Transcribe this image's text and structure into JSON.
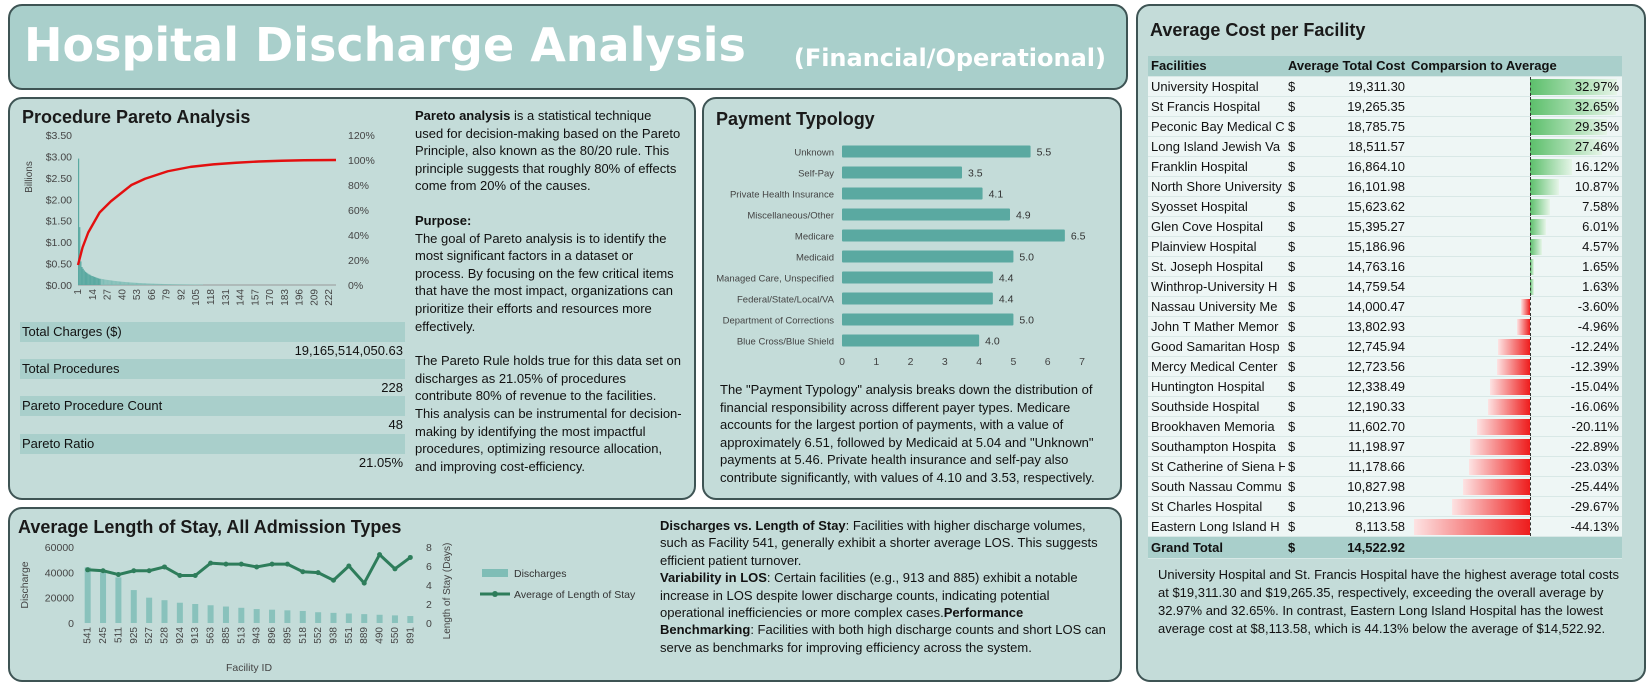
{
  "header": {
    "title": "Hospital Discharge Analysis",
    "subtitle": "(Financial/Operational)"
  },
  "pareto": {
    "title": "Procedure Pareto Analysis",
    "y_axis_unit": "Billions",
    "y_ticks": [
      "$0.00",
      "$0.50",
      "$1.00",
      "$1.50",
      "$2.00",
      "$2.50",
      "$3.00",
      "$3.50"
    ],
    "y2_ticks": [
      "0%",
      "20%",
      "40%",
      "60%",
      "80%",
      "100%",
      "120%"
    ],
    "x_ticks": [
      "1",
      "14",
      "27",
      "40",
      "53",
      "66",
      "79",
      "92",
      "105",
      "118",
      "131",
      "144",
      "157",
      "170",
      "183",
      "196",
      "209",
      "222"
    ],
    "kpis": [
      {
        "label": "Total Charges ($)",
        "value": "19,165,514,050.63"
      },
      {
        "label": "Total Procedures",
        "value": "228"
      },
      {
        "label": "Pareto Procedure Count",
        "value": "48"
      },
      {
        "label": "Pareto Ratio",
        "value": "21.05%"
      }
    ],
    "text": {
      "p1_bold": "Pareto analysis",
      "p1_rest": " is a statistical technique used for decision-making based on the Pareto Principle, also known as the 80/20 rule. This principle suggests that roughly 80% of effects come from 20% of the causes.",
      "p2_heading": "Purpose:",
      "p2": "The goal of Pareto analysis is to identify the most significant factors in a dataset or process. By focusing on the few critical items that have the most impact, organizations can prioritize their efforts and resources more effectively.",
      "p3": "The Pareto Rule holds true for this data set on discharges as 21.05% of procedures contribute 80% of revenue to the facilities. This analysis can be instrumental for decision-making by identifying the most impactful procedures, optimizing resource allocation, and improving cost-efficiency."
    }
  },
  "payment": {
    "title": "Payment Typology",
    "x_ticks": [
      "0",
      "1",
      "2",
      "3",
      "4",
      "5",
      "6",
      "7"
    ],
    "description": "The \"Payment Typology\" analysis breaks down the distribution of financial responsibility across different payer types. Medicare accounts for the largest portion of payments, with a value of approximately 6.51, followed by Medicaid at 5.04 and \"Unknown\" payments at 5.46. Private health insurance and self-pay also contribute significantly, with values of 4.10 and 3.53, respectively."
  },
  "los": {
    "title": "Average Length of Stay, All Admission Types",
    "y_ticks": [
      "0",
      "20000",
      "40000",
      "60000"
    ],
    "y2_ticks": [
      "0",
      "2",
      "4",
      "6",
      "8"
    ],
    "ylabel": "Discharge",
    "y2label": "Length of Stay (Days)",
    "xlabel": "Facility ID",
    "legend_bar": "Discharges",
    "legend_line": "Average of Length of Stay",
    "text": {
      "b1": "Discharges vs. Length of Stay",
      "t1": ": Facilities with higher discharge volumes, such as Facility 541, generally exhibit a shorter average LOS. This suggests efficient patient turnover.",
      "b2": "Variability in LOS",
      "t2": ": Certain facilities (e.g., 913 and 885) exhibit a notable increase in LOS despite lower discharge counts, indicating potential operational inefficiencies or more complex cases.",
      "b3": "Performance Benchmarking",
      "t3": ": Facilities with both high discharge counts and short LOS can serve as benchmarks for improving efficiency across the system."
    }
  },
  "cost": {
    "title": "Average Cost per Facility",
    "headers": [
      "Facilities",
      "Average Total Cost",
      "Comparsion to Average"
    ],
    "grand_total_label": "Grand Total",
    "grand_total_dollar": "$",
    "grand_total_value": "14,522.92",
    "dollar": "$",
    "description": "University Hospital and St. Francis Hospital have the highest average total costs at $19,311.30 and $19,265.35, respectively, exceeding the overall average by 32.97% and 32.65%. In contrast, Eastern Long Island Hospital has the lowest average cost at $8,113.58, which is 44.13% below the average of $14,522.92.",
    "positive_color": "#5cbf6b",
    "negative_color": "#ee1c1c"
  },
  "chart_data": [
    {
      "type": "bar",
      "title": "Procedure Pareto Analysis",
      "ylabel": "Billions",
      "ylim": [
        0,
        3.5
      ],
      "y2lim": [
        0,
        1.2
      ],
      "x_range": [
        1,
        228
      ],
      "series": [
        {
          "type": "bar",
          "values": [
            2.95,
            1.35,
            0.55,
            0.42,
            0.38,
            0.34,
            0.31,
            0.29,
            0.27,
            0.25,
            0.24,
            0.22,
            0.21,
            0.2,
            0.19,
            0.18,
            0.17,
            0.16,
            0.15,
            0.145
          ]
        },
        {
          "type": "line",
          "x": [
            1,
            5,
            10,
            20,
            30,
            48,
            60,
            80,
            100,
            120,
            140,
            160,
            180,
            200,
            228
          ],
          "values": [
            0.16,
            0.3,
            0.42,
            0.58,
            0.67,
            0.8,
            0.85,
            0.91,
            0.945,
            0.965,
            0.978,
            0.988,
            0.994,
            0.998,
            1.0
          ]
        }
      ]
    },
    {
      "type": "bar",
      "title": "Payment Typology",
      "categories": [
        "Unknown",
        "Self-Pay",
        "Private Health Insurance",
        "Miscellaneous/Other",
        "Medicare",
        "Medicaid",
        "Managed Care, Unspecified",
        "Federal/State/Local/VA",
        "Department of Corrections",
        "Blue Cross/Blue Shield"
      ],
      "values": [
        5.5,
        3.5,
        4.1,
        4.9,
        6.5,
        5.0,
        4.4,
        4.4,
        5.0,
        4.0
      ],
      "xlim": [
        0,
        7
      ]
    },
    {
      "type": "bar",
      "title": "Average Length of Stay, All Admission Types",
      "categories": [
        "541",
        "245",
        "511",
        "925",
        "527",
        "528",
        "924",
        "913",
        "563",
        "885",
        "513",
        "943",
        "896",
        "895",
        "518",
        "552",
        "938",
        "551",
        "889",
        "490",
        "550",
        "891"
      ],
      "series": [
        {
          "name": "Discharges",
          "values": [
            44000,
            40000,
            36000,
            26000,
            20000,
            18000,
            16000,
            15000,
            14000,
            13000,
            12000,
            11000,
            10500,
            10000,
            9500,
            8500,
            8000,
            7500,
            7000,
            6500,
            6000,
            5500
          ]
        },
        {
          "name": "Average of Length of Stay",
          "values": [
            5.6,
            5.5,
            5.1,
            5.5,
            5.5,
            5.9,
            5.0,
            5.0,
            6.3,
            6.2,
            6.2,
            5.9,
            6.2,
            6.2,
            5.4,
            5.3,
            4.5,
            6.0,
            4.2,
            7.2,
            5.7,
            6.9
          ]
        }
      ],
      "ylim": [
        0,
        60000
      ],
      "y2lim": [
        0,
        8
      ],
      "xlabel": "Facility ID",
      "ylabel": "Discharge",
      "y2label": "Length of Stay (Days)"
    },
    {
      "type": "table",
      "title": "Average Cost per Facility",
      "rows": [
        {
          "name": "University Hospital",
          "cost": "19,311.30",
          "pct": 32.97,
          "pct_label": "32.97%"
        },
        {
          "name": "St Francis Hospital",
          "cost": "19,265.35",
          "pct": 32.65,
          "pct_label": "32.65%"
        },
        {
          "name": "Peconic Bay Medical C",
          "cost": "18,785.75",
          "pct": 29.35,
          "pct_label": "29.35%"
        },
        {
          "name": "Long Island Jewish Va",
          "cost": "18,511.57",
          "pct": 27.46,
          "pct_label": "27.46%"
        },
        {
          "name": "Franklin Hospital",
          "cost": "16,864.10",
          "pct": 16.12,
          "pct_label": "16.12%"
        },
        {
          "name": "North Shore University",
          "cost": "16,101.98",
          "pct": 10.87,
          "pct_label": "10.87%"
        },
        {
          "name": "Syosset Hospital",
          "cost": "15,623.62",
          "pct": 7.58,
          "pct_label": "7.58%"
        },
        {
          "name": "Glen Cove Hospital",
          "cost": "15,395.27",
          "pct": 6.01,
          "pct_label": "6.01%"
        },
        {
          "name": "Plainview Hospital",
          "cost": "15,186.96",
          "pct": 4.57,
          "pct_label": "4.57%"
        },
        {
          "name": "St. Joseph Hospital",
          "cost": "14,763.16",
          "pct": 1.65,
          "pct_label": "1.65%"
        },
        {
          "name": "Winthrop-University H",
          "cost": "14,759.54",
          "pct": 1.63,
          "pct_label": "1.63%"
        },
        {
          "name": "Nassau University Me",
          "cost": "14,000.47",
          "pct": -3.6,
          "pct_label": "-3.60%"
        },
        {
          "name": "John T Mather Memor",
          "cost": "13,802.93",
          "pct": -4.96,
          "pct_label": "-4.96%"
        },
        {
          "name": "Good Samaritan Hosp",
          "cost": "12,745.94",
          "pct": -12.24,
          "pct_label": "-12.24%"
        },
        {
          "name": "Mercy Medical Center",
          "cost": "12,723.56",
          "pct": -12.39,
          "pct_label": "-12.39%"
        },
        {
          "name": "Huntington Hospital",
          "cost": "12,338.49",
          "pct": -15.04,
          "pct_label": "-15.04%"
        },
        {
          "name": "Southside Hospital",
          "cost": "12,190.33",
          "pct": -16.06,
          "pct_label": "-16.06%"
        },
        {
          "name": "Brookhaven Memoria",
          "cost": "11,602.70",
          "pct": -20.11,
          "pct_label": "-20.11%"
        },
        {
          "name": "Southampton Hospita",
          "cost": "11,198.97",
          "pct": -22.89,
          "pct_label": "-22.89%"
        },
        {
          "name": "St Catherine of Siena H",
          "cost": "11,178.66",
          "pct": -23.03,
          "pct_label": "-23.03%"
        },
        {
          "name": "South Nassau Commu",
          "cost": "10,827.98",
          "pct": -25.44,
          "pct_label": "-25.44%"
        },
        {
          "name": "St Charles Hospital",
          "cost": "10,213.96",
          "pct": -29.67,
          "pct_label": "-29.67%"
        },
        {
          "name": "Eastern Long Island H",
          "cost": "8,113.58",
          "pct": -44.13,
          "pct_label": "-44.13%"
        }
      ]
    }
  ]
}
